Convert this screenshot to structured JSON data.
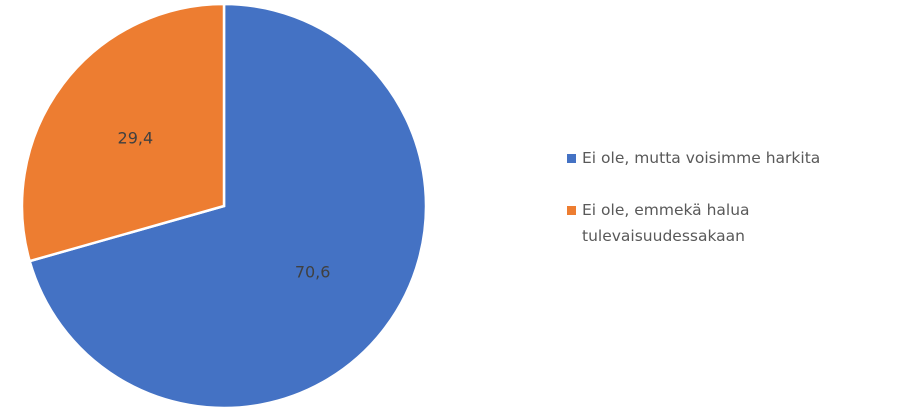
{
  "chart_data": {
    "type": "pie",
    "categories": [
      "Ei ole, mutta voisimme harkita",
      "Ei ole, emmekä halua tulevaisuudessakaan"
    ],
    "values": [
      70.6,
      29.4
    ],
    "value_labels": [
      "70,6",
      "29,4"
    ],
    "colors": [
      "#4472c4",
      "#ed7d31"
    ],
    "legend": "right"
  }
}
